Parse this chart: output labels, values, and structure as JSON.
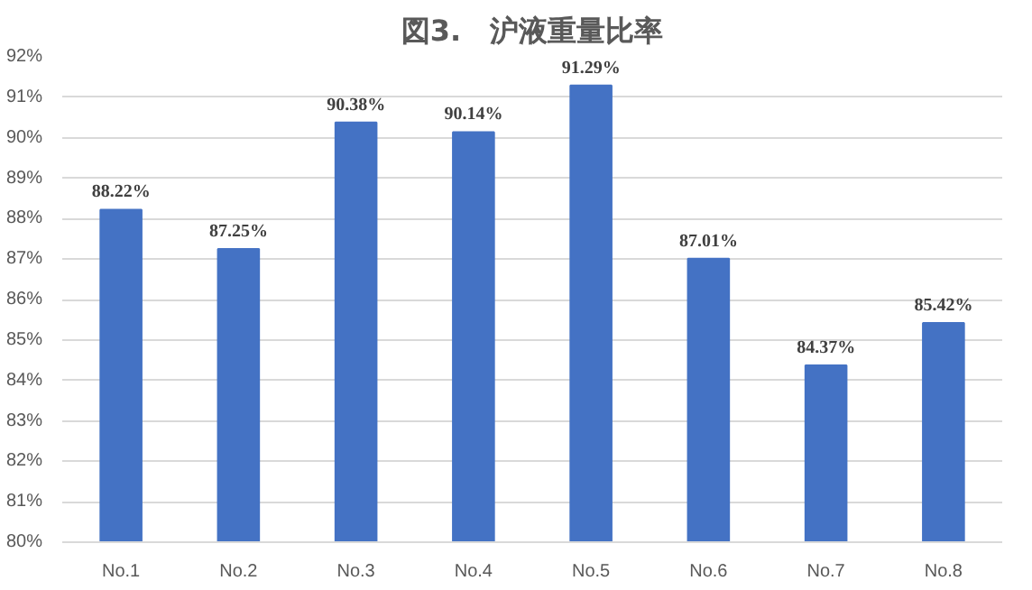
{
  "chart_data": {
    "type": "bar",
    "title": "図3.　沪液重量比率",
    "categories": [
      "No.1",
      "No.2",
      "No.3",
      "No.4",
      "No.5",
      "No.6",
      "No.7",
      "No.8"
    ],
    "values": [
      88.22,
      87.25,
      90.38,
      90.14,
      91.29,
      87.01,
      84.37,
      85.42
    ],
    "value_labels": [
      "88.22%",
      "87.25%",
      "90.38%",
      "90.14%",
      "91.29%",
      "87.01%",
      "84.37%",
      "85.42%"
    ],
    "color": "#4472c4",
    "ylim": [
      80,
      92
    ],
    "yticks": [
      {
        "value": 80,
        "label": "80%"
      },
      {
        "value": 81,
        "label": "81%"
      },
      {
        "value": 82,
        "label": "82%"
      },
      {
        "value": 83,
        "label": "83%"
      },
      {
        "value": 84,
        "label": "84%"
      },
      {
        "value": 85,
        "label": "85%"
      },
      {
        "value": 86,
        "label": "86%"
      },
      {
        "value": 87,
        "label": "87%"
      },
      {
        "value": 88,
        "label": "88%"
      },
      {
        "value": 89,
        "label": "89%"
      },
      {
        "value": 90,
        "label": "90%"
      },
      {
        "value": 91,
        "label": "91%"
      },
      {
        "value": 92,
        "label": "92%"
      }
    ],
    "grid": "y"
  }
}
